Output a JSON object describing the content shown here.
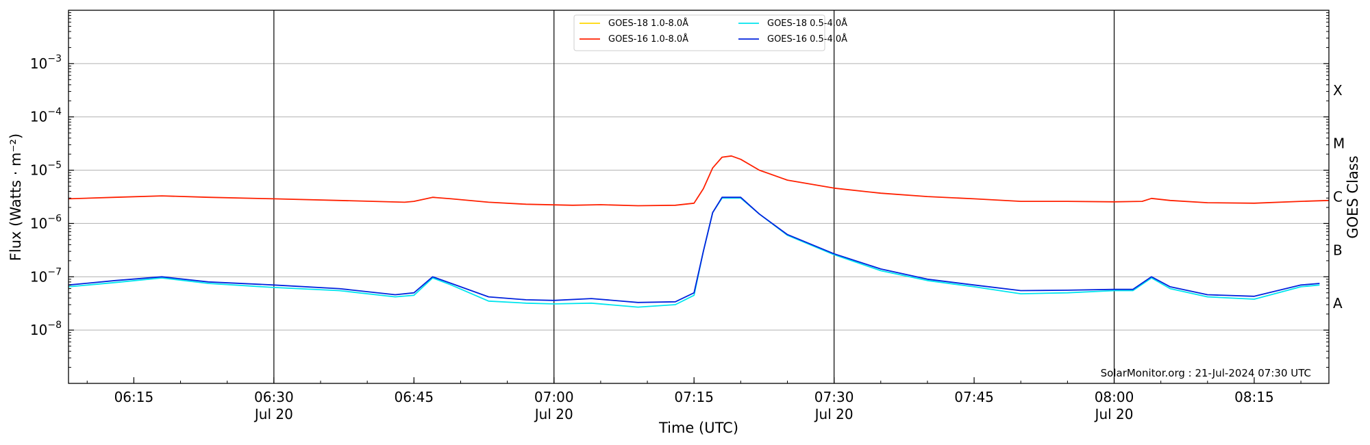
{
  "chart_data": {
    "type": "line",
    "xlabel": "Time (UTC)",
    "ylabel": "Flux (Watts · m⁻²)",
    "y2label": "GOES Class",
    "yscale": "log",
    "xlim": [
      "2024-07-20 06:08",
      "2024-07-20 08:23"
    ],
    "ylim": [
      1e-09,
      0.01
    ],
    "grid": "horizontal at decades, vertical at half-hours",
    "legend_position": "top-center",
    "annotation": "SolarMonitor.org : 21-Jul-2024 07:30 UTC",
    "x_ticks": [
      {
        "t": "2024-07-20 06:15",
        "label": "06:15",
        "sub": ""
      },
      {
        "t": "2024-07-20 06:30",
        "label": "06:30",
        "sub": "Jul 20"
      },
      {
        "t": "2024-07-20 06:45",
        "label": "06:45",
        "sub": ""
      },
      {
        "t": "2024-07-20 07:00",
        "label": "07:00",
        "sub": "Jul 20"
      },
      {
        "t": "2024-07-20 07:15",
        "label": "07:15",
        "sub": ""
      },
      {
        "t": "2024-07-20 07:30",
        "label": "07:30",
        "sub": "Jul 20"
      },
      {
        "t": "2024-07-20 07:45",
        "label": "07:45",
        "sub": ""
      },
      {
        "t": "2024-07-20 08:00",
        "label": "08:00",
        "sub": "Jul 20"
      },
      {
        "t": "2024-07-20 08:15",
        "label": "08:15",
        "sub": ""
      }
    ],
    "y_ticks": [
      {
        "v": 1e-08,
        "label": "10",
        "exp": "−8"
      },
      {
        "v": 1e-07,
        "label": "10",
        "exp": "−7"
      },
      {
        "v": 1e-06,
        "label": "10",
        "exp": "−6"
      },
      {
        "v": 1e-05,
        "label": "10",
        "exp": "−5"
      },
      {
        "v": 0.0001,
        "label": "10",
        "exp": "−4"
      },
      {
        "v": 0.001,
        "label": "10",
        "exp": "−3"
      }
    ],
    "goes_classes": [
      {
        "label": "A",
        "v": 3.16e-08
      },
      {
        "label": "B",
        "v": 3.16e-07
      },
      {
        "label": "C",
        "v": 3.16e-06
      },
      {
        "label": "M",
        "v": 3.16e-05
      },
      {
        "label": "X",
        "v": 0.000316
      }
    ],
    "series": [
      {
        "name": "GOES-18 1.0-8.0Å",
        "color": "#ffd700",
        "points": []
      },
      {
        "name": "GOES-18 0.5-4.0Å",
        "color": "#00e5ee",
        "points": [
          [
            "2024-07-20 06:08",
            6.5e-08
          ],
          [
            "2024-07-20 06:13",
            7.8e-08
          ],
          [
            "2024-07-20 06:18",
            9.5e-08
          ],
          [
            "2024-07-20 06:23",
            7.5e-08
          ],
          [
            "2024-07-20 06:30",
            6.3e-08
          ],
          [
            "2024-07-20 06:37",
            5.5e-08
          ],
          [
            "2024-07-20 06:43",
            4.2e-08
          ],
          [
            "2024-07-20 06:45",
            4.5e-08
          ],
          [
            "2024-07-20 06:47",
            9.5e-08
          ],
          [
            "2024-07-20 06:49",
            7e-08
          ],
          [
            "2024-07-20 06:53",
            3.5e-08
          ],
          [
            "2024-07-20 06:57",
            3.2e-08
          ],
          [
            "2024-07-20 07:00",
            3.1e-08
          ],
          [
            "2024-07-20 07:04",
            3.2e-08
          ],
          [
            "2024-07-20 07:09",
            2.7e-08
          ],
          [
            "2024-07-20 07:13",
            3e-08
          ],
          [
            "2024-07-20 07:15",
            4.5e-08
          ],
          [
            "2024-07-20 07:16",
            3e-07
          ],
          [
            "2024-07-20 07:17",
            1.6e-06
          ],
          [
            "2024-07-20 07:18",
            3e-06
          ],
          [
            "2024-07-20 07:20",
            3e-06
          ],
          [
            "2024-07-20 07:22",
            1.5e-06
          ],
          [
            "2024-07-20 07:25",
            6e-07
          ],
          [
            "2024-07-20 07:30",
            2.6e-07
          ],
          [
            "2024-07-20 07:35",
            1.3e-07
          ],
          [
            "2024-07-20 07:40",
            8.5e-08
          ],
          [
            "2024-07-20 07:45",
            6.5e-08
          ],
          [
            "2024-07-20 07:50",
            4.8e-08
          ],
          [
            "2024-07-20 07:55",
            5e-08
          ],
          [
            "2024-07-20 08:00",
            5.5e-08
          ],
          [
            "2024-07-20 08:02",
            5.5e-08
          ],
          [
            "2024-07-20 08:04",
            9.5e-08
          ],
          [
            "2024-07-20 08:06",
            6e-08
          ],
          [
            "2024-07-20 08:10",
            4.2e-08
          ],
          [
            "2024-07-20 08:15",
            3.8e-08
          ],
          [
            "2024-07-20 08:20",
            6.5e-08
          ],
          [
            "2024-07-20 08:22",
            7e-08
          ]
        ]
      },
      {
        "name": "GOES-16 1.0-8.0Å",
        "color": "#ff2000",
        "points": [
          [
            "2024-07-20 06:08",
            2.9e-06
          ],
          [
            "2024-07-20 06:13",
            3.1e-06
          ],
          [
            "2024-07-20 06:18",
            3.3e-06
          ],
          [
            "2024-07-20 06:23",
            3.1e-06
          ],
          [
            "2024-07-20 06:30",
            2.9e-06
          ],
          [
            "2024-07-20 06:37",
            2.7e-06
          ],
          [
            "2024-07-20 06:44",
            2.5e-06
          ],
          [
            "2024-07-20 06:45",
            2.6e-06
          ],
          [
            "2024-07-20 06:47",
            3.1e-06
          ],
          [
            "2024-07-20 06:49",
            2.9e-06
          ],
          [
            "2024-07-20 06:53",
            2.5e-06
          ],
          [
            "2024-07-20 06:57",
            2.3e-06
          ],
          [
            "2024-07-20 07:02",
            2.2e-06
          ],
          [
            "2024-07-20 07:05",
            2.25e-06
          ],
          [
            "2024-07-20 07:09",
            2.15e-06
          ],
          [
            "2024-07-20 07:13",
            2.2e-06
          ],
          [
            "2024-07-20 07:15",
            2.4e-06
          ],
          [
            "2024-07-20 07:16",
            4.5e-06
          ],
          [
            "2024-07-20 07:17",
            1.1e-05
          ],
          [
            "2024-07-20 07:18",
            1.75e-05
          ],
          [
            "2024-07-20 07:19",
            1.85e-05
          ],
          [
            "2024-07-20 07:20",
            1.6e-05
          ],
          [
            "2024-07-20 07:22",
            1e-05
          ],
          [
            "2024-07-20 07:25",
            6.5e-06
          ],
          [
            "2024-07-20 07:30",
            4.6e-06
          ],
          [
            "2024-07-20 07:35",
            3.7e-06
          ],
          [
            "2024-07-20 07:40",
            3.2e-06
          ],
          [
            "2024-07-20 07:45",
            2.9e-06
          ],
          [
            "2024-07-20 07:50",
            2.6e-06
          ],
          [
            "2024-07-20 07:55",
            2.6e-06
          ],
          [
            "2024-07-20 08:00",
            2.55e-06
          ],
          [
            "2024-07-20 08:03",
            2.6e-06
          ],
          [
            "2024-07-20 08:04",
            2.95e-06
          ],
          [
            "2024-07-20 08:06",
            2.7e-06
          ],
          [
            "2024-07-20 08:10",
            2.45e-06
          ],
          [
            "2024-07-20 08:15",
            2.4e-06
          ],
          [
            "2024-07-20 08:20",
            2.6e-06
          ],
          [
            "2024-07-20 08:23",
            2.7e-06
          ]
        ]
      },
      {
        "name": "GOES-16 0.5-4.0Å",
        "color": "#0022dd",
        "points": [
          [
            "2024-07-20 06:08",
            7e-08
          ],
          [
            "2024-07-20 06:13",
            8.5e-08
          ],
          [
            "2024-07-20 06:18",
            1e-07
          ],
          [
            "2024-07-20 06:23",
            8e-08
          ],
          [
            "2024-07-20 06:30",
            7e-08
          ],
          [
            "2024-07-20 06:37",
            6e-08
          ],
          [
            "2024-07-20 06:43",
            4.6e-08
          ],
          [
            "2024-07-20 06:45",
            5e-08
          ],
          [
            "2024-07-20 06:47",
            1e-07
          ],
          [
            "2024-07-20 06:49",
            7.5e-08
          ],
          [
            "2024-07-20 06:53",
            4.2e-08
          ],
          [
            "2024-07-20 06:57",
            3.7e-08
          ],
          [
            "2024-07-20 07:00",
            3.6e-08
          ],
          [
            "2024-07-20 07:04",
            3.9e-08
          ],
          [
            "2024-07-20 07:09",
            3.3e-08
          ],
          [
            "2024-07-20 07:13",
            3.4e-08
          ],
          [
            "2024-07-20 07:15",
            5e-08
          ],
          [
            "2024-07-20 07:16",
            3e-07
          ],
          [
            "2024-07-20 07:17",
            1.6e-06
          ],
          [
            "2024-07-20 07:18",
            3.1e-06
          ],
          [
            "2024-07-20 07:20",
            3.1e-06
          ],
          [
            "2024-07-20 07:22",
            1.5e-06
          ],
          [
            "2024-07-20 07:25",
            6.2e-07
          ],
          [
            "2024-07-20 07:30",
            2.7e-07
          ],
          [
            "2024-07-20 07:35",
            1.4e-07
          ],
          [
            "2024-07-20 07:40",
            9e-08
          ],
          [
            "2024-07-20 07:45",
            7e-08
          ],
          [
            "2024-07-20 07:50",
            5.5e-08
          ],
          [
            "2024-07-20 07:55",
            5.6e-08
          ],
          [
            "2024-07-20 08:00",
            5.8e-08
          ],
          [
            "2024-07-20 08:02",
            5.8e-08
          ],
          [
            "2024-07-20 08:04",
            1e-07
          ],
          [
            "2024-07-20 08:06",
            6.5e-08
          ],
          [
            "2024-07-20 08:10",
            4.6e-08
          ],
          [
            "2024-07-20 08:15",
            4.3e-08
          ],
          [
            "2024-07-20 08:20",
            7e-08
          ],
          [
            "2024-07-20 08:22",
            7.5e-08
          ]
        ]
      }
    ],
    "legend_order": [
      0,
      2,
      1,
      3
    ]
  }
}
